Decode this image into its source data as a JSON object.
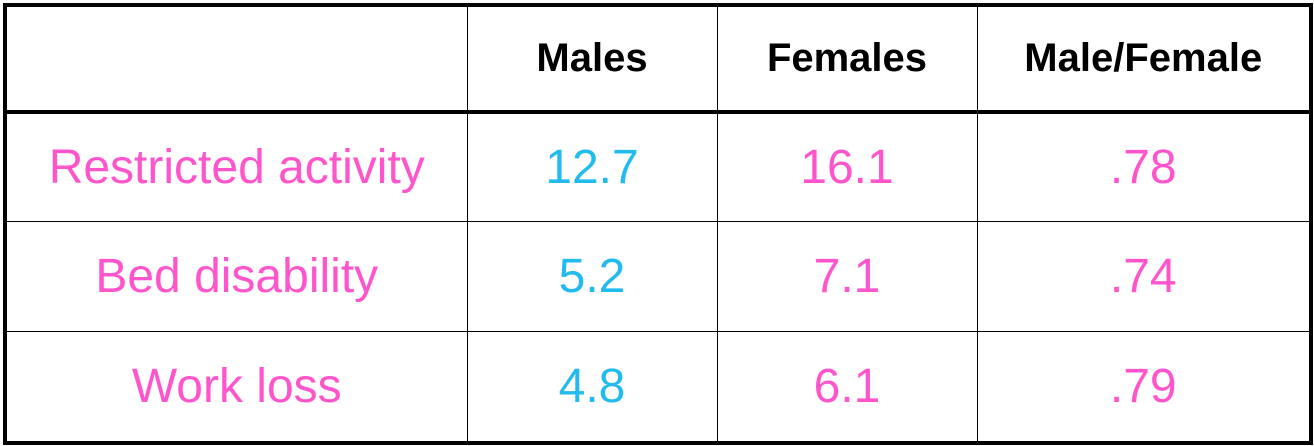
{
  "chart_data": {
    "type": "table",
    "columns": [
      "",
      "Males",
      "Females",
      "Male/Female"
    ],
    "rows": [
      {
        "label": "Restricted activity",
        "males": "12.7",
        "females": "16.1",
        "ratio": ".78"
      },
      {
        "label": "Bed disability",
        "males": "5.2",
        "females": "7.1",
        "ratio": ".74"
      },
      {
        "label": "Work loss",
        "males": "4.8",
        "females": "6.1",
        "ratio": ".79"
      }
    ],
    "colors": {
      "header_text": "#000000",
      "row_label": "#ff55cc",
      "males": "#22bbee",
      "females": "#ff55cc",
      "ratio": "#ff55cc"
    }
  }
}
